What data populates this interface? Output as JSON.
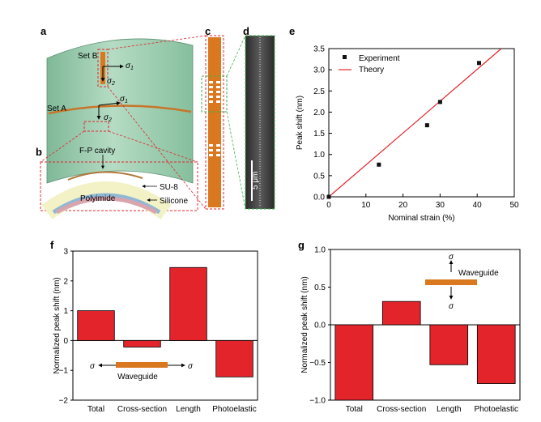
{
  "panels": {
    "a": "a",
    "b": "b",
    "c": "c",
    "d": "d",
    "e": "e",
    "f": "f",
    "g": "g"
  },
  "schematic": {
    "set_b": "Set B",
    "set_a": "Set A",
    "sigma1": "σ",
    "sigma1_sub": "1",
    "sigma2": "σ",
    "sigma2_sub": "2",
    "fp_cavity": "F-P cavity",
    "su8": "SU-8",
    "polyimide": "Polyimide",
    "silicone": "Silicone",
    "scale_bar": "5 μm"
  },
  "colors": {
    "substrate_green": "#9ccfb0",
    "waveguide_orange": "#d9781f",
    "bar_red": "#e3242b",
    "theory_red": "#e3242b",
    "sem_gray": "#444444",
    "dashed_red": "#e3242b",
    "dashed_green": "#39b54a"
  },
  "chart_data": [
    {
      "id": "e",
      "type": "scatter",
      "xlabel": "Nominal strain (%)",
      "ylabel": "Peak shift (nm)",
      "xlim": [
        0,
        50
      ],
      "ylim": [
        0,
        3.5
      ],
      "xticks": [
        0,
        10,
        20,
        30,
        40,
        50
      ],
      "yticks": [
        0.0,
        0.5,
        1.0,
        1.5,
        2.0,
        2.5,
        3.0,
        3.5
      ],
      "ytick_labels": [
        "0.0",
        "0.5",
        "1.0",
        "1.5",
        "2.0",
        "2.5",
        "3.0",
        "3.5"
      ],
      "legend": [
        "Experiment",
        "Theory"
      ],
      "legend_position": "top-left",
      "series": [
        {
          "name": "Experiment",
          "x": [
            0,
            13.5,
            26.5,
            30,
            40.5
          ],
          "y": [
            0,
            0.76,
            1.69,
            2.24,
            3.16
          ]
        },
        {
          "name": "Theory",
          "x": [
            0,
            46.5
          ],
          "y": [
            0,
            3.5
          ]
        }
      ]
    },
    {
      "id": "f",
      "type": "bar",
      "ylabel": "Normalized peak shift (nm)",
      "categories": [
        "Total",
        "Cross-section",
        "Length",
        "Photoelastic"
      ],
      "values": [
        1.0,
        -0.22,
        2.45,
        -1.22
      ],
      "ylim": [
        -2,
        3
      ],
      "yticks": [
        -2,
        -1,
        0,
        1,
        2,
        3
      ],
      "ytick_labels": [
        "−2",
        "−1",
        "0",
        "1",
        "2",
        "3"
      ],
      "inset": {
        "label": "Waveguide",
        "sigma": "σ"
      }
    },
    {
      "id": "g",
      "type": "bar",
      "ylabel": "Normalized peak shift (nm)",
      "categories": [
        "Total",
        "Cross-section",
        "Length",
        "Photoelastic"
      ],
      "values": [
        -1.0,
        0.31,
        -0.53,
        -0.78
      ],
      "ylim": [
        -1.0,
        1.0
      ],
      "yticks": [
        -1.0,
        -0.5,
        0.0,
        0.5,
        1.0
      ],
      "ytick_labels": [
        "−1.0",
        "−0.5",
        "0.0",
        "0.5",
        "1.0"
      ],
      "inset": {
        "label": "Waveguide",
        "sigma": "σ"
      }
    }
  ]
}
